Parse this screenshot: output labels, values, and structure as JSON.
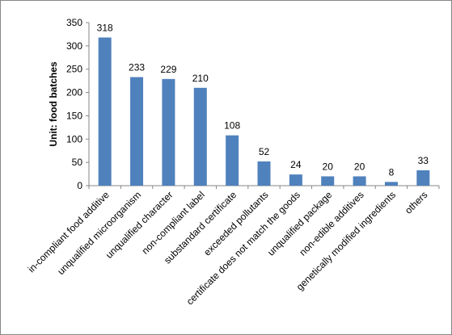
{
  "chart_data": {
    "type": "bar",
    "y_label": "Unit: food batches",
    "categories": [
      "in-compliant food additive",
      "unqualified microorganism",
      "unqualified character",
      "non-compliant label",
      "substandard certificate",
      "exceeded pollutants",
      "certificate does not match the goods",
      "unqualified package",
      "non-edible additives",
      "genetically modified ingredients",
      "others"
    ],
    "values": [
      318,
      233,
      229,
      210,
      108,
      52,
      24,
      20,
      20,
      8,
      33
    ],
    "color": "#4f81bd",
    "ylim": [
      0,
      350
    ],
    "yticks": [
      0,
      50,
      100,
      150,
      200,
      250,
      300,
      350
    ],
    "grid": false
  }
}
